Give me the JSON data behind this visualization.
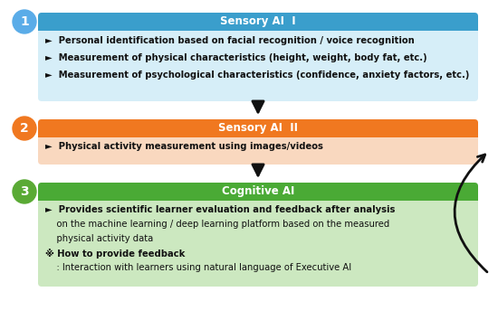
{
  "bg_color": "#ffffff",
  "box1_header_color": "#3a9ecc",
  "box1_body_color": "#d6eef8",
  "box1_title": "Sensory AI  I",
  "box1_bullets": [
    "►  Personal identification based on facial recognition / voice recognition",
    "►  Measurement of physical characteristics (height, weight, body fat, etc.)",
    "►  Measurement of psychological characteristics (confidence, anxiety factors, etc.)"
  ],
  "box2_header_color": "#f07820",
  "box2_body_color": "#f9d8bf",
  "box2_title": "Sensory AI  II",
  "box2_bullets": [
    "►  Physical activity measurement using images/videos"
  ],
  "box3_header_color": "#4aaa35",
  "box3_body_color": "#cce8c0",
  "box3_title": "Cognitive AI",
  "circle_color1": "#5aace8",
  "circle_color2": "#f07820",
  "circle_color3": "#5aaa35",
  "title_font_size": 8.5,
  "body_font_size": 7.2,
  "circle_font_size": 10,
  "header_text_color": "#ffffff",
  "body_text_color": "#111111",
  "arrow_color": "#111111"
}
